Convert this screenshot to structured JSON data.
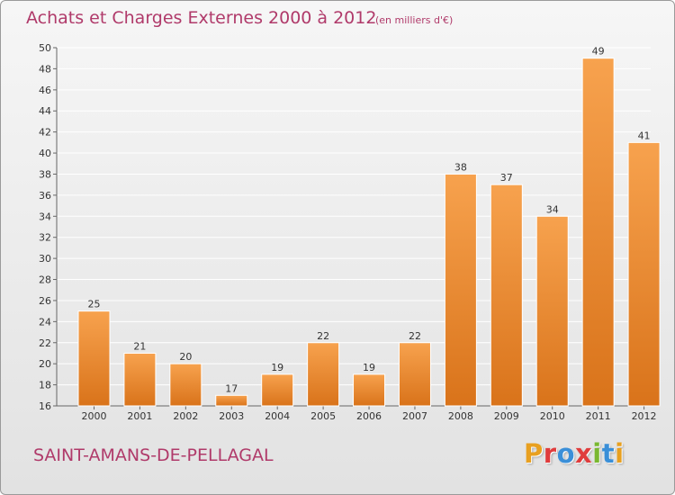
{
  "header": {
    "title": "Achats et Charges Externes 2000 à 2012",
    "unit": "(en milliers d'€)"
  },
  "footer": {
    "commune": "SAINT-AMANS-DE-PELLAGAL",
    "logo_text": "Proxiti",
    "logo_colors": [
      "#e8a020",
      "#e03c3c",
      "#3a8fd8",
      "#e03c3c",
      "#7ab830",
      "#3a8fd8",
      "#e8a020"
    ]
  },
  "colors": {
    "bar_top": "#f7a24e",
    "bar_bottom": "#d9731a",
    "title": "#b03a6a",
    "grid": "#ffffff"
  },
  "chart_data": {
    "type": "bar",
    "categories": [
      "2000",
      "2001",
      "2002",
      "2003",
      "2004",
      "2005",
      "2006",
      "2007",
      "2008",
      "2009",
      "2010",
      "2011",
      "2012"
    ],
    "values": [
      25,
      21,
      20,
      17,
      19,
      22,
      19,
      22,
      38,
      37,
      34,
      49,
      41
    ],
    "value_labels": [
      "25",
      "21",
      "20",
      "17",
      "19",
      "22",
      "19",
      "22",
      "38",
      "37",
      "34",
      "49",
      "41"
    ],
    "title": "Achats et Charges Externes 2000 à 2012",
    "xlabel": "",
    "ylabel": "",
    "ylim": [
      16,
      50
    ],
    "yticks": [
      16,
      18,
      20,
      22,
      24,
      26,
      28,
      30,
      32,
      34,
      36,
      38,
      40,
      42,
      44,
      46,
      48,
      50
    ],
    "grid": true,
    "legend": "none"
  }
}
